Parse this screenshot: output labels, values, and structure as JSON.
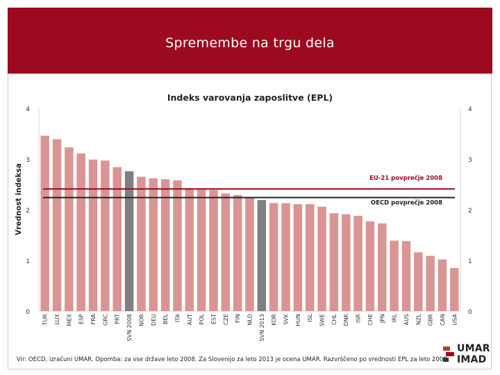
{
  "slide": {
    "title": "Spremembe na trgu dela",
    "footnote": "Vir: OECD, izračuni UMAR. Opomba: za vse države leto 2008. Za Slovenijo za leto 2013 je ocena UMAR. Razvrščeno po vrednosti EPL za leto 2008."
  },
  "logo": {
    "line1": "UMAR",
    "line2": "IMAD",
    "icon": "umar-logo-icon"
  },
  "chart_data": {
    "type": "bar",
    "title": "Indeks varovanja zaposlitve (EPL)",
    "ylabel": "Vrednost indeksa",
    "xlabel": "",
    "ylim": [
      0,
      4
    ],
    "yticks": [
      0,
      1,
      2,
      3,
      4
    ],
    "grid": false,
    "categories": [
      "TUR",
      "LUX",
      "MEX",
      "ESP",
      "FRA",
      "GRC",
      "PRT",
      "SVN 2008",
      "NOR",
      "DEU",
      "BEL",
      "ITA",
      "AUT",
      "POL",
      "EST",
      "CZE",
      "FIN",
      "NLD",
      "SVN 2013",
      "KOR",
      "SVK",
      "HUN",
      "ISL",
      "SWE",
      "CHL",
      "DNK",
      "ISR",
      "CHE",
      "JPN",
      "IRL",
      "AUS",
      "NZL",
      "GBR",
      "CAN",
      "USA"
    ],
    "values": [
      3.46,
      3.39,
      3.23,
      3.11,
      2.99,
      2.97,
      2.84,
      2.76,
      2.65,
      2.62,
      2.6,
      2.58,
      2.41,
      2.41,
      2.39,
      2.32,
      2.29,
      2.23,
      2.19,
      2.13,
      2.13,
      2.11,
      2.11,
      2.06,
      1.93,
      1.91,
      1.88,
      1.77,
      1.73,
      1.39,
      1.38,
      1.16,
      1.09,
      1.02,
      0.85
    ],
    "highlighted": [
      "SVN 2008",
      "SVN 2013"
    ],
    "reference_lines": [
      {
        "label": "EU-21 povprečje 2008",
        "value": 2.41,
        "color": "#9b0a1e"
      },
      {
        "label": "OECD povprečje 2008",
        "value": 2.24,
        "color": "#222222"
      }
    ],
    "colors": {
      "bar": "#d99594",
      "highlight": "#7f7f7f"
    }
  }
}
